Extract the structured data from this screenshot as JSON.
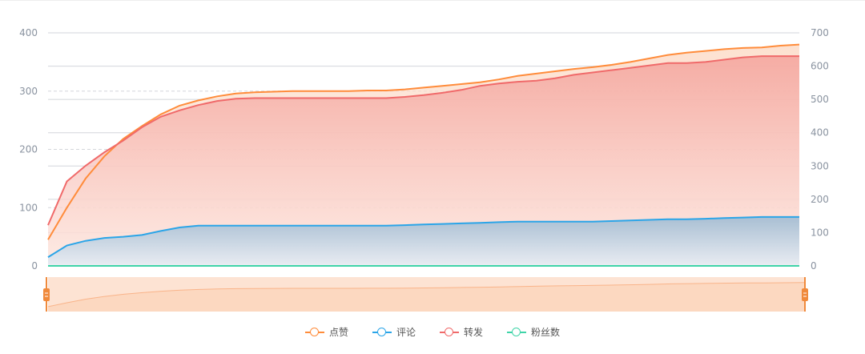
{
  "chart_data": {
    "type": "line",
    "left_axis": {
      "ylim": [
        0,
        400
      ],
      "ticks": [
        0,
        100,
        200,
        300,
        400
      ],
      "grid": "dashed"
    },
    "right_axis": {
      "ylim": [
        0,
        700
      ],
      "ticks": [
        0,
        100,
        200,
        300,
        400,
        500,
        600,
        700
      ],
      "grid": "solid"
    },
    "legend_position": "bottom",
    "data_zoom": {
      "start": 0,
      "end": 100
    },
    "series": [
      {
        "name": "点赞",
        "color": "#ff8c3b",
        "area": true,
        "values": [
          45,
          100,
          150,
          188,
          218,
          240,
          260,
          275,
          284,
          291,
          296,
          298,
          299,
          300,
          300,
          300,
          300,
          301,
          301,
          303,
          306,
          309,
          312,
          315,
          320,
          326,
          330,
          334,
          338,
          341,
          345,
          350,
          356,
          362,
          366,
          369,
          372,
          374,
          375,
          378,
          380
        ]
      },
      {
        "name": "评论",
        "color": "#2ba5e8",
        "area": true,
        "values": [
          15,
          35,
          43,
          48,
          50,
          53,
          60,
          66,
          69,
          69,
          69,
          69,
          69,
          69,
          69,
          69,
          69,
          69,
          69,
          70,
          71,
          72,
          73,
          74,
          75,
          76,
          76,
          76,
          76,
          76,
          77,
          78,
          79,
          80,
          80,
          81,
          82,
          83,
          84,
          84,
          84
        ]
      },
      {
        "name": "转发",
        "color": "#f06a6a",
        "area": true,
        "values": [
          70,
          145,
          172,
          195,
          215,
          238,
          256,
          267,
          276,
          283,
          287,
          288,
          288,
          288,
          288,
          288,
          288,
          288,
          288,
          290,
          293,
          297,
          302,
          309,
          313,
          316,
          318,
          322,
          328,
          332,
          336,
          340,
          344,
          348,
          348,
          350,
          354,
          358,
          360,
          360,
          360
        ]
      },
      {
        "name": "粉丝数",
        "color": "#3fd4a8",
        "area": false,
        "values": [
          0,
          0,
          0,
          0,
          0,
          0,
          0,
          0,
          0,
          0,
          0,
          0,
          0,
          0,
          0,
          0,
          0,
          0,
          0,
          0,
          0,
          0,
          0,
          0,
          0,
          0,
          0,
          0,
          0,
          0,
          0,
          0,
          0,
          0,
          0,
          0,
          0,
          0,
          0,
          0,
          0
        ]
      }
    ]
  }
}
